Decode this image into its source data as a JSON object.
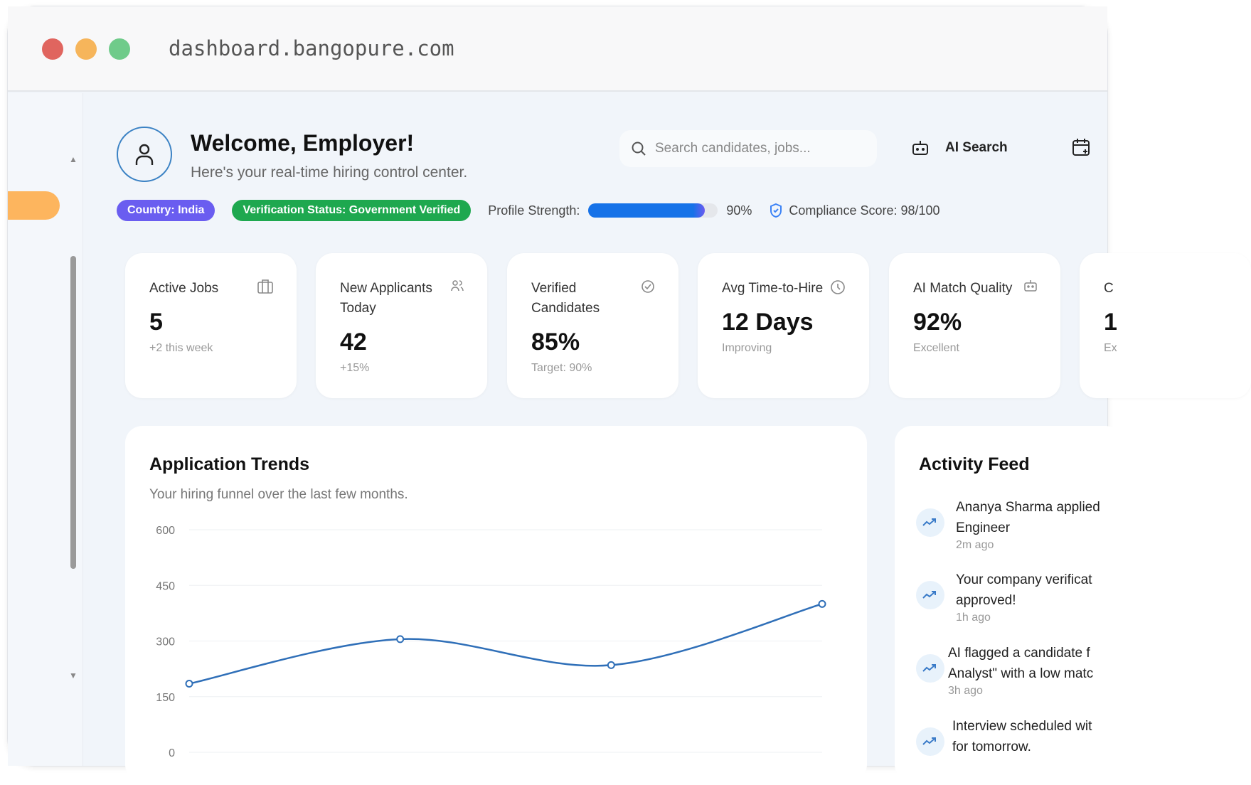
{
  "browser": {
    "url": "dashboard.bangopure.com",
    "traffic_lights": [
      "#e0655f",
      "#f6b55b",
      "#6fcb8a"
    ]
  },
  "header": {
    "title": "Welcome, Employer!",
    "subtitle": "Here's your real-time hiring control center.",
    "search_placeholder": "Search candidates, jobs...",
    "ai_search_label": "AI Search"
  },
  "status": {
    "country": "Country: India",
    "verification": "Verification Status: Government Verified",
    "profile_label": "Profile Strength:",
    "profile_value": 90,
    "profile_text": "90%",
    "compliance": "Compliance Score: 98/100",
    "colors": {
      "country": "#6a5df0",
      "verification": "#1ea84f",
      "progress": "#1672e8"
    }
  },
  "cards": [
    {
      "title": "Active Jobs",
      "value": "5",
      "sub": "+2 this week",
      "icon": "briefcase-icon"
    },
    {
      "title": "New Applicants Today",
      "value": "42",
      "sub": "+15%",
      "icon": "users-icon"
    },
    {
      "title": "Verified Candidates",
      "value": "85%",
      "sub": "Target: 90%",
      "icon": "check-circle-icon"
    },
    {
      "title": "Avg Time-to-Hire",
      "value": "12 Days",
      "sub": "Improving",
      "icon": "clock-icon"
    },
    {
      "title": "AI Match Quality",
      "value": "92%",
      "sub": "Excellent",
      "icon": "bot-icon"
    },
    {
      "title": "C",
      "value": "1",
      "sub": "Ex",
      "icon": ""
    }
  ],
  "chart_data": {
    "type": "line",
    "title": "Application Trends",
    "subtitle": "Your hiring funnel over the last few months.",
    "y_ticks": [
      "600",
      "450",
      "300",
      "150",
      "0"
    ],
    "ylim": [
      0,
      600
    ],
    "values": [
      185,
      305,
      235,
      400
    ],
    "grid": true,
    "color": "#2f6fb8"
  },
  "activity": {
    "title": "Activity Feed",
    "items": [
      {
        "text": "Ananya Sharma applied",
        "text2": "Engineer",
        "time": "2m ago"
      },
      {
        "text": "Your company verificat",
        "text2": "approved!",
        "time": "1h ago"
      },
      {
        "text": "AI flagged a candidate f",
        "text2": "Analyst\" with a low matc",
        "time": "3h ago"
      },
      {
        "text": "Interview scheduled wit",
        "text2": "for tomorrow.",
        "time": ""
      }
    ]
  }
}
